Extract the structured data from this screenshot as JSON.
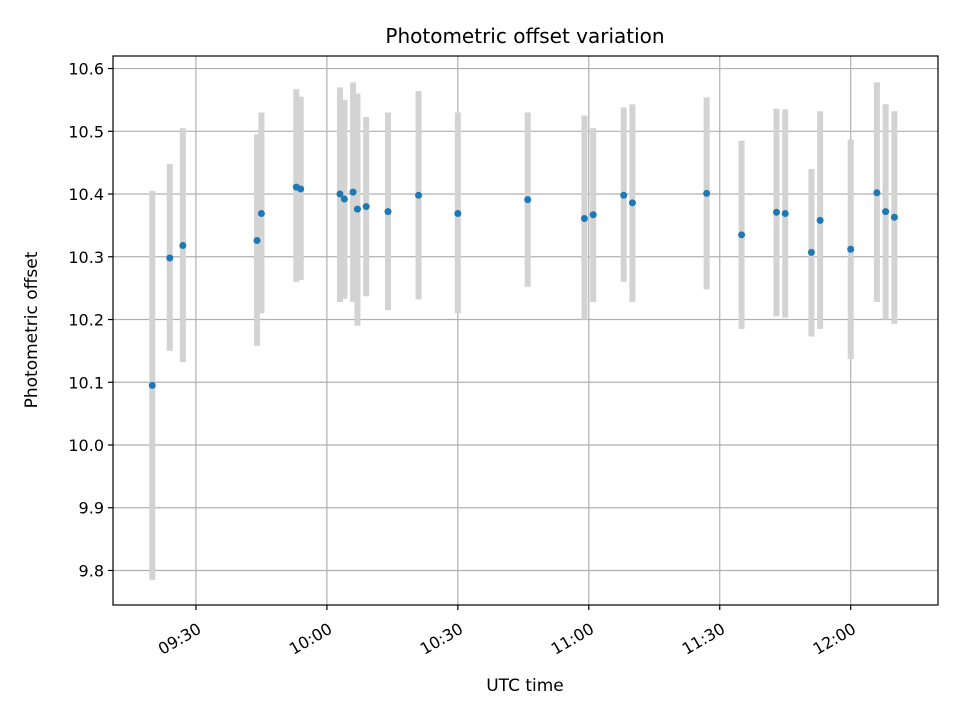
{
  "chart_data": {
    "type": "scatter",
    "title": "Photometric offset variation",
    "xlabel": "UTC time",
    "ylabel": "Photometric offset",
    "x_ticks": [
      "09:30",
      "10:00",
      "10:30",
      "11:00",
      "11:30",
      "12:00"
    ],
    "y_ticks": [
      "9.8",
      "9.9",
      "10.0",
      "10.1",
      "10.2",
      "10.3",
      "10.4",
      "10.5",
      "10.6"
    ],
    "xlim": [
      "09:11",
      "12:20"
    ],
    "ylim": [
      9.745,
      10.62
    ],
    "grid": true,
    "colors": {
      "point": "#1f77b4",
      "errorbar": "#d3d3d3",
      "grid": "#b0b0b0"
    },
    "points": [
      {
        "t": "09:20",
        "y": 10.095,
        "lo": 9.785,
        "hi": 10.405
      },
      {
        "t": "09:24",
        "y": 10.298,
        "lo": 10.15,
        "hi": 10.448
      },
      {
        "t": "09:27",
        "y": 10.318,
        "lo": 10.132,
        "hi": 10.505
      },
      {
        "t": "09:44",
        "y": 10.326,
        "lo": 10.158,
        "hi": 10.495
      },
      {
        "t": "09:45",
        "y": 10.369,
        "lo": 10.21,
        "hi": 10.53
      },
      {
        "t": "09:53",
        "y": 10.411,
        "lo": 10.26,
        "hi": 10.567
      },
      {
        "t": "09:54",
        "y": 10.408,
        "lo": 10.263,
        "hi": 10.555
      },
      {
        "t": "10:03",
        "y": 10.4,
        "lo": 10.228,
        "hi": 10.57
      },
      {
        "t": "10:04",
        "y": 10.392,
        "lo": 10.233,
        "hi": 10.55
      },
      {
        "t": "10:06",
        "y": 10.403,
        "lo": 10.228,
        "hi": 10.578
      },
      {
        "t": "10:07",
        "y": 10.376,
        "lo": 10.19,
        "hi": 10.56
      },
      {
        "t": "10:09",
        "y": 10.38,
        "lo": 10.237,
        "hi": 10.523
      },
      {
        "t": "10:14",
        "y": 10.372,
        "lo": 10.215,
        "hi": 10.53
      },
      {
        "t": "10:21",
        "y": 10.398,
        "lo": 10.232,
        "hi": 10.564
      },
      {
        "t": "10:30",
        "y": 10.369,
        "lo": 10.21,
        "hi": 10.53
      },
      {
        "t": "10:46",
        "y": 10.391,
        "lo": 10.252,
        "hi": 10.53
      },
      {
        "t": "10:59",
        "y": 10.361,
        "lo": 10.2,
        "hi": 10.525
      },
      {
        "t": "11:01",
        "y": 10.367,
        "lo": 10.228,
        "hi": 10.505
      },
      {
        "t": "11:08",
        "y": 10.398,
        "lo": 10.26,
        "hi": 10.538
      },
      {
        "t": "11:10",
        "y": 10.386,
        "lo": 10.228,
        "hi": 10.543
      },
      {
        "t": "11:27",
        "y": 10.401,
        "lo": 10.248,
        "hi": 10.554
      },
      {
        "t": "11:35",
        "y": 10.335,
        "lo": 10.185,
        "hi": 10.485
      },
      {
        "t": "11:43",
        "y": 10.371,
        "lo": 10.205,
        "hi": 10.536
      },
      {
        "t": "11:45",
        "y": 10.369,
        "lo": 10.203,
        "hi": 10.535
      },
      {
        "t": "11:51",
        "y": 10.307,
        "lo": 10.173,
        "hi": 10.44
      },
      {
        "t": "11:53",
        "y": 10.358,
        "lo": 10.185,
        "hi": 10.532
      },
      {
        "t": "12:00",
        "y": 10.312,
        "lo": 10.137,
        "hi": 10.487
      },
      {
        "t": "12:06",
        "y": 10.402,
        "lo": 10.228,
        "hi": 10.578
      },
      {
        "t": "12:08",
        "y": 10.372,
        "lo": 10.2,
        "hi": 10.543
      },
      {
        "t": "12:10",
        "y": 10.363,
        "lo": 10.193,
        "hi": 10.532
      }
    ]
  }
}
